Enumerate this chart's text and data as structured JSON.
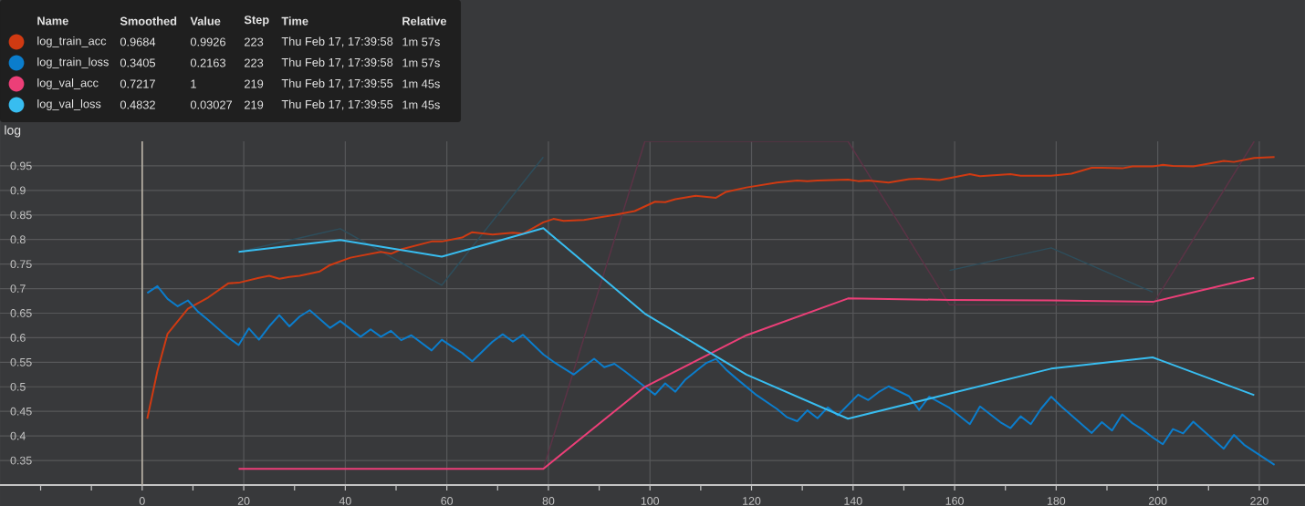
{
  "chart_data": {
    "type": "line",
    "title": "log",
    "xlim": [
      -28,
      229
    ],
    "ylim": [
      0.3,
      1.0
    ],
    "xticks": [
      {
        "value": -20,
        "label": null
      },
      {
        "value": -10,
        "label": null
      },
      0,
      {
        "value": 10,
        "label": null
      },
      20,
      {
        "value": 30,
        "label": null
      },
      40,
      {
        "value": 50,
        "label": null
      },
      60,
      {
        "value": 70,
        "label": null
      },
      80,
      {
        "value": 90,
        "label": null
      },
      100,
      {
        "value": 110,
        "label": null
      },
      120,
      {
        "value": 130,
        "label": null
      },
      140,
      {
        "value": 150,
        "label": null
      },
      160,
      {
        "value": 170,
        "label": null
      },
      180,
      {
        "value": 190,
        "label": null
      },
      200,
      {
        "value": 210,
        "label": null
      },
      220
    ],
    "yticks": [
      0.35,
      0.4,
      0.45,
      0.5,
      0.55,
      0.6,
      0.65,
      0.7,
      0.75,
      0.8,
      0.85,
      0.9,
      0.95
    ],
    "grid": true,
    "legend": "top left",
    "ref_lines": [
      {
        "axis": "x",
        "value": 0,
        "color": "#bdb6aa"
      }
    ],
    "annotations": [
      "Name",
      "Smoothed",
      "Value",
      "Step",
      "Time",
      "Relative",
      "0.9684",
      "0.9926",
      "223",
      "Thu Feb 17, 17:39:58",
      "1m 57s",
      "0.3405",
      "0.2163",
      "223",
      "Thu Feb 17, 17:39:58",
      "1m 57s",
      "0.7217",
      "1",
      "219",
      "Thu Feb 17, 17:39:55",
      "1m 45s",
      "0.4832",
      "0.03027",
      "219",
      "Thu Feb 17, 17:39:55",
      "1m 45s"
    ],
    "series": [
      {
        "color": "#5b3346",
        "x": [
          19,
          39,
          59,
          79,
          99,
          119,
          139,
          159,
          179,
          199,
          219
        ],
        "values": [
          0.333,
          0.333,
          0.333,
          0.333,
          1.0,
          1.0,
          1.0,
          0.667,
          0.667,
          0.667,
          1.0
        ]
      },
      {
        "color": "#2e4e5c",
        "x": [
          19,
          39,
          59,
          79,
          99,
          119,
          139,
          159,
          179,
          199
        ],
        "values": [
          0.775,
          0.822,
          0.707,
          0.968,
          null,
          null,
          null,
          0.737,
          0.783,
          0.693
        ]
      },
      {
        "name": "log_train_acc",
        "color": "#d03a12",
        "x": [
          1,
          3,
          5,
          9,
          13,
          17,
          19,
          23,
          25,
          27,
          29,
          31,
          35,
          37,
          41,
          47,
          49,
          51,
          57,
          59,
          63,
          65,
          69,
          73,
          75,
          79,
          81,
          83,
          87,
          93,
          97,
          101,
          103,
          105,
          109,
          113,
          115,
          119,
          125,
          129,
          131,
          133,
          139,
          141,
          143,
          147,
          151,
          153,
          157,
          163,
          165,
          171,
          173,
          179,
          183,
          187,
          189,
          193,
          195,
          199,
          201,
          203,
          207,
          213,
          215,
          219,
          223
        ],
        "values": [
          0.435,
          0.532,
          0.608,
          0.659,
          0.682,
          0.711,
          0.712,
          0.722,
          0.726,
          0.72,
          0.724,
          0.726,
          0.735,
          0.748,
          0.763,
          0.775,
          0.771,
          0.78,
          0.796,
          0.796,
          0.804,
          0.815,
          0.81,
          0.814,
          0.812,
          0.835,
          0.842,
          0.838,
          0.84,
          0.85,
          0.858,
          0.877,
          0.876,
          0.882,
          0.889,
          0.885,
          0.897,
          0.906,
          0.916,
          0.92,
          0.919,
          0.92,
          0.922,
          0.919,
          0.92,
          0.916,
          0.923,
          0.924,
          0.921,
          0.933,
          0.929,
          0.933,
          0.93,
          0.93,
          0.934,
          0.946,
          0.946,
          0.945,
          0.949,
          0.949,
          0.952,
          0.95,
          0.949,
          0.96,
          0.958,
          0.966,
          0.968
        ]
      },
      {
        "name": "log_train_loss",
        "color": "#0b7dcc",
        "x": [
          1,
          3,
          5,
          7,
          9,
          11,
          13,
          17,
          19,
          21,
          23,
          25,
          27,
          29,
          31,
          33,
          37,
          39,
          43,
          45,
          47,
          49,
          51,
          53,
          57,
          59,
          61,
          63,
          65,
          69,
          71,
          73,
          75,
          79,
          81,
          85,
          89,
          91,
          93,
          95,
          99,
          101,
          103,
          105,
          107,
          111,
          113,
          115,
          117,
          121,
          125,
          127,
          129,
          131,
          133,
          135,
          137,
          141,
          143,
          145,
          147,
          151,
          153,
          155,
          159,
          163,
          165,
          169,
          171,
          173,
          175,
          177,
          179,
          181,
          187,
          189,
          191,
          193,
          195,
          197,
          199,
          201,
          203,
          205,
          207,
          213,
          215,
          217,
          223
        ],
        "values": [
          0.691,
          0.705,
          0.679,
          0.664,
          0.676,
          0.653,
          0.636,
          0.6,
          0.585,
          0.619,
          0.596,
          0.623,
          0.646,
          0.623,
          0.643,
          0.656,
          0.62,
          0.634,
          0.602,
          0.617,
          0.602,
          0.614,
          0.595,
          0.605,
          0.574,
          0.596,
          0.582,
          0.569,
          0.552,
          0.592,
          0.607,
          0.592,
          0.606,
          0.566,
          0.551,
          0.525,
          0.557,
          0.54,
          0.547,
          0.532,
          0.5,
          0.484,
          0.507,
          0.49,
          0.515,
          0.548,
          0.557,
          0.535,
          0.517,
          0.483,
          0.455,
          0.438,
          0.43,
          0.452,
          0.436,
          0.458,
          0.442,
          0.484,
          0.473,
          0.489,
          0.501,
          0.481,
          0.453,
          0.48,
          0.457,
          0.424,
          0.46,
          0.428,
          0.416,
          0.44,
          0.424,
          0.455,
          0.48,
          0.46,
          0.406,
          0.428,
          0.411,
          0.444,
          0.426,
          0.413,
          0.397,
          0.383,
          0.414,
          0.405,
          0.429,
          0.374,
          0.402,
          0.382,
          0.341
        ]
      },
      {
        "name": "log_val_acc",
        "color": "#ec3f78",
        "x": [
          19,
          39,
          59,
          79,
          99,
          119,
          139,
          159,
          179,
          199,
          219
        ],
        "values": [
          0.333,
          0.333,
          0.333,
          0.333,
          0.5,
          0.605,
          0.68,
          0.677,
          0.676,
          0.673,
          0.722
        ]
      },
      {
        "name": "log_val_loss",
        "color": "#38bdf0",
        "x": [
          19,
          39,
          59,
          79,
          99,
          119,
          139,
          159,
          179,
          199,
          219
        ],
        "values": [
          0.775,
          0.799,
          0.765,
          0.823,
          0.649,
          0.525,
          0.435,
          0.486,
          0.537,
          0.56,
          0.483
        ]
      }
    ]
  }
}
